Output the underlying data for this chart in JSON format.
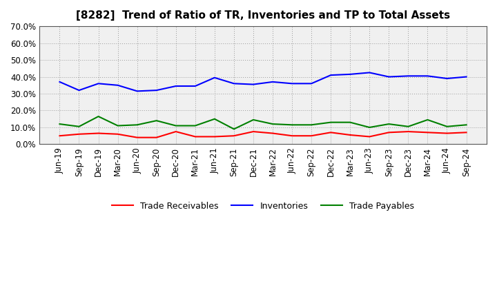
{
  "title": "[8282]  Trend of Ratio of TR, Inventories and TP to Total Assets",
  "labels": [
    "Jun-19",
    "Sep-19",
    "Dec-19",
    "Mar-20",
    "Jun-20",
    "Sep-20",
    "Dec-20",
    "Mar-21",
    "Jun-21",
    "Sep-21",
    "Dec-21",
    "Mar-22",
    "Jun-22",
    "Sep-22",
    "Dec-22",
    "Mar-23",
    "Jun-23",
    "Sep-23",
    "Dec-23",
    "Mar-24",
    "Jun-24",
    "Sep-24"
  ],
  "trade_receivables": [
    5.0,
    6.0,
    6.5,
    6.0,
    4.0,
    4.0,
    7.5,
    4.5,
    4.5,
    5.0,
    7.5,
    6.5,
    5.0,
    5.0,
    7.0,
    5.5,
    4.5,
    7.0,
    7.5,
    7.0,
    6.5,
    7.0
  ],
  "inventories": [
    37.0,
    32.0,
    36.0,
    35.0,
    31.5,
    32.0,
    34.5,
    34.5,
    39.5,
    36.0,
    35.5,
    37.0,
    36.0,
    36.0,
    41.0,
    41.5,
    42.5,
    40.0,
    40.5,
    40.5,
    39.0,
    40.0
  ],
  "trade_payables": [
    12.0,
    10.5,
    16.5,
    11.0,
    11.5,
    14.0,
    11.0,
    11.0,
    15.0,
    9.0,
    14.5,
    12.0,
    11.5,
    11.5,
    13.0,
    13.0,
    10.0,
    12.0,
    10.5,
    14.5,
    10.5,
    11.5
  ],
  "tr_color": "#FF0000",
  "inv_color": "#0000FF",
  "tp_color": "#008000",
  "ylim": [
    0.0,
    70.0
  ],
  "yticks": [
    0.0,
    10.0,
    20.0,
    30.0,
    40.0,
    50.0,
    60.0,
    70.0
  ],
  "background_color": "#FFFFFF",
  "plot_bg_color": "#F0F0F0",
  "grid_color": "#999999",
  "legend_tr": "Trade Receivables",
  "legend_inv": "Inventories",
  "legend_tp": "Trade Payables",
  "title_fontsize": 11,
  "tick_fontsize": 8.5,
  "legend_fontsize": 9
}
